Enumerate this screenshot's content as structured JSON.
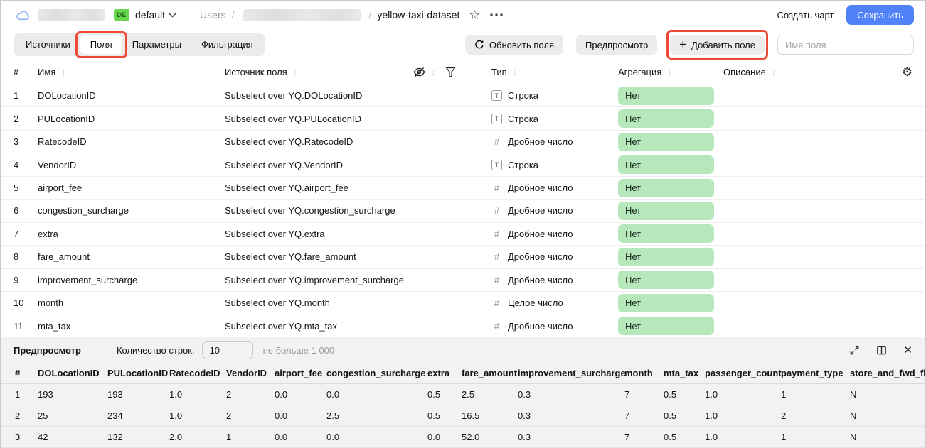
{
  "topbar": {
    "env_badge": "DE",
    "folder_name": "default",
    "breadcrumb": {
      "root": "Users",
      "separator": "/",
      "dataset": "yellow-taxi-dataset"
    },
    "create_chart_label": "Создать чарт",
    "save_label": "Сохранить"
  },
  "tabs": {
    "items": [
      "Источники",
      "Поля",
      "Параметры",
      "Фильтрация"
    ],
    "active": "Поля"
  },
  "toolbar": {
    "refresh_label": "Обновить поля",
    "preview_label": "Предпросмотр",
    "add_field_label": "Добавить поле",
    "field_name_placeholder": "Имя поля"
  },
  "fields_table": {
    "headers": {
      "num": "#",
      "name": "Имя",
      "source": "Источник поля",
      "type": "Тип",
      "aggregation": "Агрегация",
      "description": "Описание"
    },
    "rows": [
      {
        "num": "1",
        "name": "DOLocationID",
        "source": "Subselect over YQ.DOLocationID",
        "type_icon": "string",
        "type_label": "Строка",
        "aggregation": "Нет"
      },
      {
        "num": "2",
        "name": "PULocationID",
        "source": "Subselect over YQ.PULocationID",
        "type_icon": "string",
        "type_label": "Строка",
        "aggregation": "Нет"
      },
      {
        "num": "3",
        "name": "RatecodeID",
        "source": "Subselect over YQ.RatecodeID",
        "type_icon": "number",
        "type_label": "Дробное число",
        "aggregation": "Нет"
      },
      {
        "num": "4",
        "name": "VendorID",
        "source": "Subselect over YQ.VendorID",
        "type_icon": "string",
        "type_label": "Строка",
        "aggregation": "Нет"
      },
      {
        "num": "5",
        "name": "airport_fee",
        "source": "Subselect over YQ.airport_fee",
        "type_icon": "number",
        "type_label": "Дробное число",
        "aggregation": "Нет"
      },
      {
        "num": "6",
        "name": "congestion_surcharge",
        "source": "Subselect over YQ.congestion_surcharge",
        "type_icon": "number",
        "type_label": "Дробное число",
        "aggregation": "Нет"
      },
      {
        "num": "7",
        "name": "extra",
        "source": "Subselect over YQ.extra",
        "type_icon": "number",
        "type_label": "Дробное число",
        "aggregation": "Нет"
      },
      {
        "num": "8",
        "name": "fare_amount",
        "source": "Subselect over YQ.fare_amount",
        "type_icon": "number",
        "type_label": "Дробное число",
        "aggregation": "Нет"
      },
      {
        "num": "9",
        "name": "improvement_surcharge",
        "source": "Subselect over YQ.improvement_surcharge",
        "type_icon": "number",
        "type_label": "Дробное число",
        "aggregation": "Нет"
      },
      {
        "num": "10",
        "name": "month",
        "source": "Subselect over YQ.month",
        "type_icon": "number",
        "type_label": "Целое число",
        "aggregation": "Нет"
      },
      {
        "num": "11",
        "name": "mta_tax",
        "source": "Subselect over YQ.mta_tax",
        "type_icon": "number",
        "type_label": "Дробное число",
        "aggregation": "Нет"
      }
    ]
  },
  "preview": {
    "title": "Предпросмотр",
    "row_count_label": "Количество строк:",
    "row_count_value": "10",
    "row_count_hint": "не больше 1 000",
    "table": {
      "columns": [
        "#",
        "DOLocationID",
        "PULocationID",
        "RatecodeID",
        "VendorID",
        "airport_fee",
        "congestion_surcharge",
        "extra",
        "fare_amount",
        "improvement_surcharge",
        "month",
        "mta_tax",
        "passenger_count",
        "payment_type",
        "store_and_fwd_flag"
      ],
      "rows": [
        [
          "1",
          "193",
          "193",
          "1.0",
          "2",
          "0.0",
          "0.0",
          "0.5",
          "2.5",
          "0.3",
          "7",
          "0.5",
          "1.0",
          "1",
          "N"
        ],
        [
          "2",
          "25",
          "234",
          "1.0",
          "2",
          "0.0",
          "2.5",
          "0.5",
          "16.5",
          "0.3",
          "7",
          "0.5",
          "1.0",
          "2",
          "N"
        ],
        [
          "3",
          "42",
          "132",
          "2.0",
          "1",
          "0.0",
          "0.0",
          "0.0",
          "52.0",
          "0.3",
          "7",
          "0.5",
          "1.0",
          "1",
          "N"
        ]
      ]
    }
  },
  "icons": {
    "sort_arrow": "↓",
    "gear": "⚙",
    "star": "☆",
    "close": "✕",
    "plus": "+",
    "type_string": "T",
    "type_number": "#"
  },
  "colors": {
    "accent_blue": "#5282f9",
    "aggregation_badge_green": "#b6e8bb",
    "env_badge_green": "#68d74e",
    "annotation_red": "#ec4b38"
  }
}
